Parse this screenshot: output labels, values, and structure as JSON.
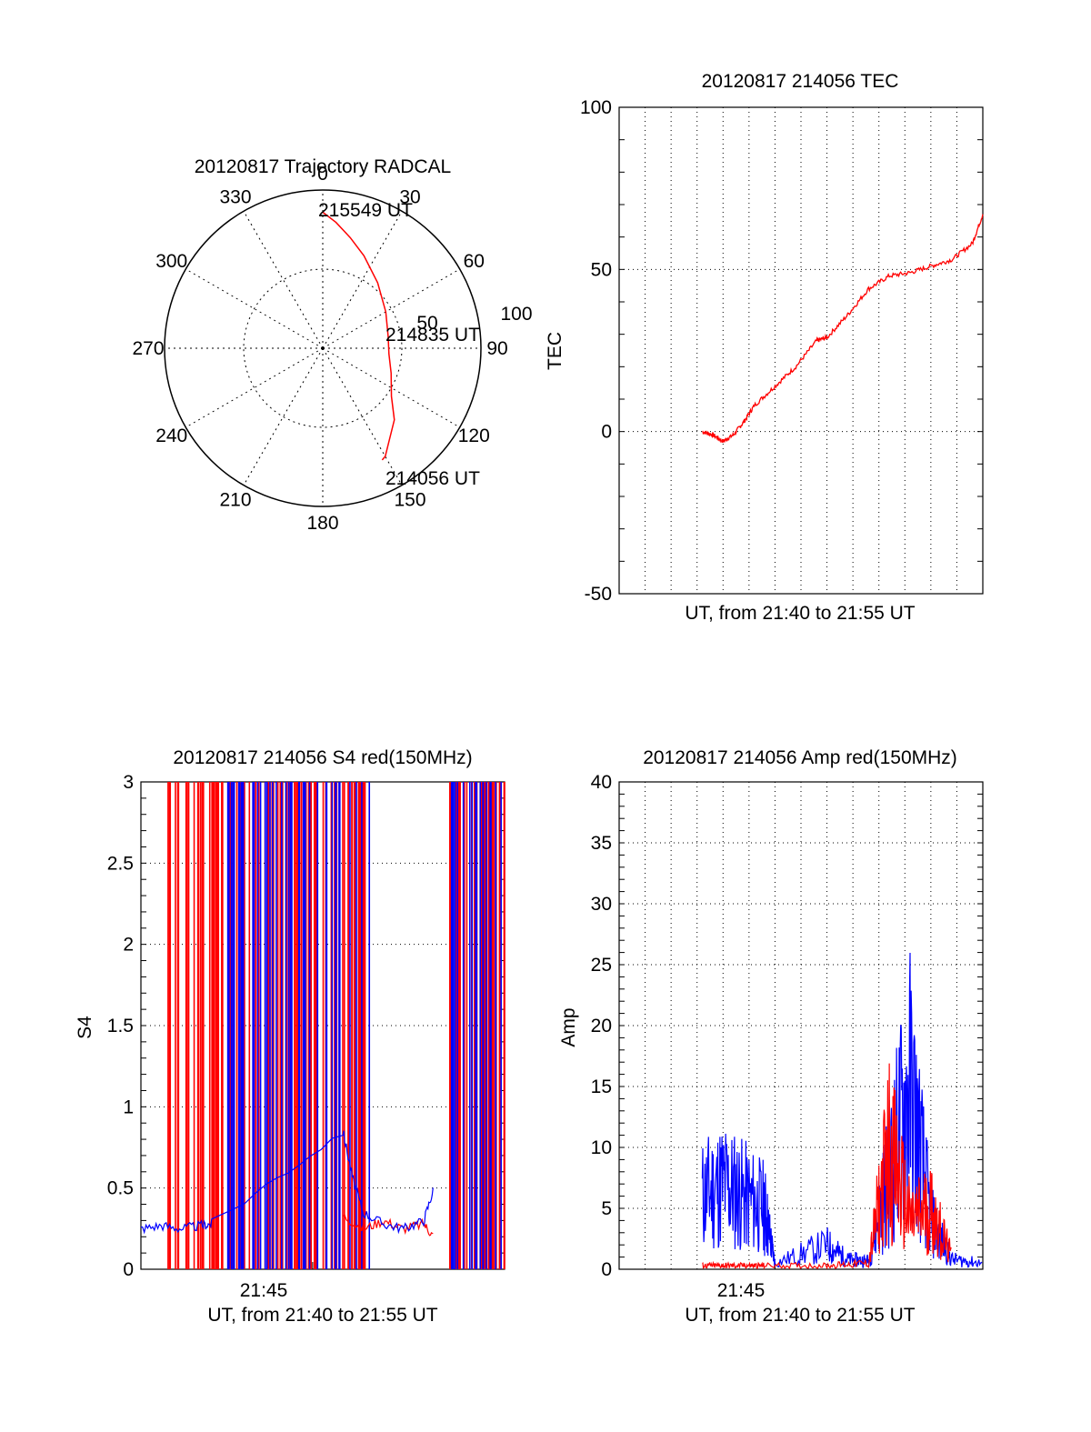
{
  "colors": {
    "red": "#ff0000",
    "blue": "#0000ff",
    "axis": "#000000",
    "grid": "#000000"
  },
  "chart_data": [
    {
      "id": "trajectory",
      "type": "scatter",
      "polar": true,
      "title": "20120817 Trajectory RADCAL",
      "angle_labels": [
        "0",
        "30",
        "60",
        "90",
        "120",
        "150",
        "180",
        "210",
        "240",
        "270",
        "300",
        "330"
      ],
      "radius_labels": [
        "50",
        "100"
      ],
      "r_max": 100,
      "series": [
        {
          "color": "red",
          "points": [
            {
              "az": 0,
              "r": 86
            },
            {
              "az": 6,
              "r": 80
            },
            {
              "az": 14,
              "r": 72
            },
            {
              "az": 24,
              "r": 64
            },
            {
              "az": 40,
              "r": 54
            },
            {
              "az": 60,
              "r": 46
            },
            {
              "az": 80,
              "r": 42
            },
            {
              "az": 95,
              "r": 42
            },
            {
              "az": 110,
              "r": 46
            },
            {
              "az": 125,
              "r": 53
            },
            {
              "az": 135,
              "r": 64
            },
            {
              "az": 150,
              "r": 79
            },
            {
              "az": 152,
              "r": 80
            }
          ]
        }
      ],
      "annotations": [
        {
          "text": "215549 UT",
          "az": 0,
          "r": 86
        },
        {
          "text": "214835 UT",
          "az": 95,
          "r": 42
        },
        {
          "text": "214056 UT",
          "az": 152,
          "r": 80
        }
      ]
    },
    {
      "id": "tec",
      "type": "line",
      "title": "20120817 214056 TEC",
      "xlabel": "UT, from 21:40 to 21:55 UT",
      "ylabel": "TEC",
      "ylim": [
        -50,
        100
      ],
      "yticks": [
        "-50",
        "0",
        "50",
        "100"
      ],
      "xlim": [
        21.6,
        21.95
      ],
      "grid": true,
      "series": [
        {
          "color": "red",
          "x": [
            21.68,
            21.69,
            21.7,
            21.71,
            21.72,
            21.73,
            21.75,
            21.77,
            21.79,
            21.8,
            21.82,
            21.84,
            21.86,
            21.88,
            21.9,
            21.92,
            21.94,
            21.95
          ],
          "y": [
            0,
            -1,
            -3,
            -1,
            3,
            8,
            14,
            20,
            28,
            29,
            36,
            44,
            48,
            49,
            51,
            53,
            58,
            67
          ]
        }
      ]
    },
    {
      "id": "s4",
      "type": "line",
      "title": "20120817 214056 S4 red(150MHz)",
      "xlabel": "UT, from 21:40 to 21:55 UT",
      "ylabel": "S4",
      "ylim": [
        0,
        3
      ],
      "yticks": [
        "0",
        "0.5",
        "1",
        "1.5",
        "2",
        "2.5",
        "3"
      ],
      "xlim": [
        21.58,
        21.94
      ],
      "xtick_label": "21:45",
      "xtick_value": 21.75,
      "grid": true,
      "series": [
        {
          "color": "red",
          "x": [
            21.78,
            21.8,
            21.82,
            21.84,
            21.86,
            21.87
          ],
          "y": [
            0.33,
            0.25,
            0.3,
            0.25,
            0.28,
            0.2
          ]
        },
        {
          "color": "blue",
          "x": [
            21.58,
            21.6,
            21.62,
            21.64,
            21.65,
            21.78,
            21.79,
            21.8,
            21.82,
            21.84,
            21.86,
            21.87
          ],
          "y": [
            0.25,
            0.27,
            0.25,
            0.27,
            0.28,
            0.85,
            0.55,
            0.35,
            0.28,
            0.25,
            0.3,
            0.5
          ]
        }
      ]
    },
    {
      "id": "amp",
      "type": "line",
      "title": "20120817 214056 Amp red(150MHz)",
      "xlabel": "UT, from 21:40 to 21:55 UT",
      "ylabel": "Amp",
      "ylim": [
        0,
        40
      ],
      "yticks": [
        "0",
        "5",
        "10",
        "15",
        "20",
        "25",
        "30",
        "35",
        "40"
      ],
      "xlim": [
        21.6,
        21.95
      ],
      "xtick_label": "21:45",
      "xtick_value": 21.75,
      "grid": true,
      "series": [
        {
          "color": "blue",
          "x": [
            21.68,
            21.7,
            21.72,
            21.74,
            21.75,
            21.8,
            21.82,
            21.84,
            21.86,
            21.88,
            21.9,
            21.92,
            21.95
          ],
          "y": [
            6,
            7,
            6,
            5,
            0.5,
            2,
            0.8,
            0.7,
            8,
            15,
            4,
            0.8,
            0.5
          ]
        },
        {
          "color": "red",
          "x": [
            21.68,
            21.7,
            21.72,
            21.74,
            21.8,
            21.84,
            21.86,
            21.88,
            21.9,
            21.92
          ],
          "y": [
            0.3,
            0.3,
            0.3,
            0.3,
            0.3,
            0.5,
            10,
            4,
            5,
            1
          ]
        }
      ]
    }
  ]
}
